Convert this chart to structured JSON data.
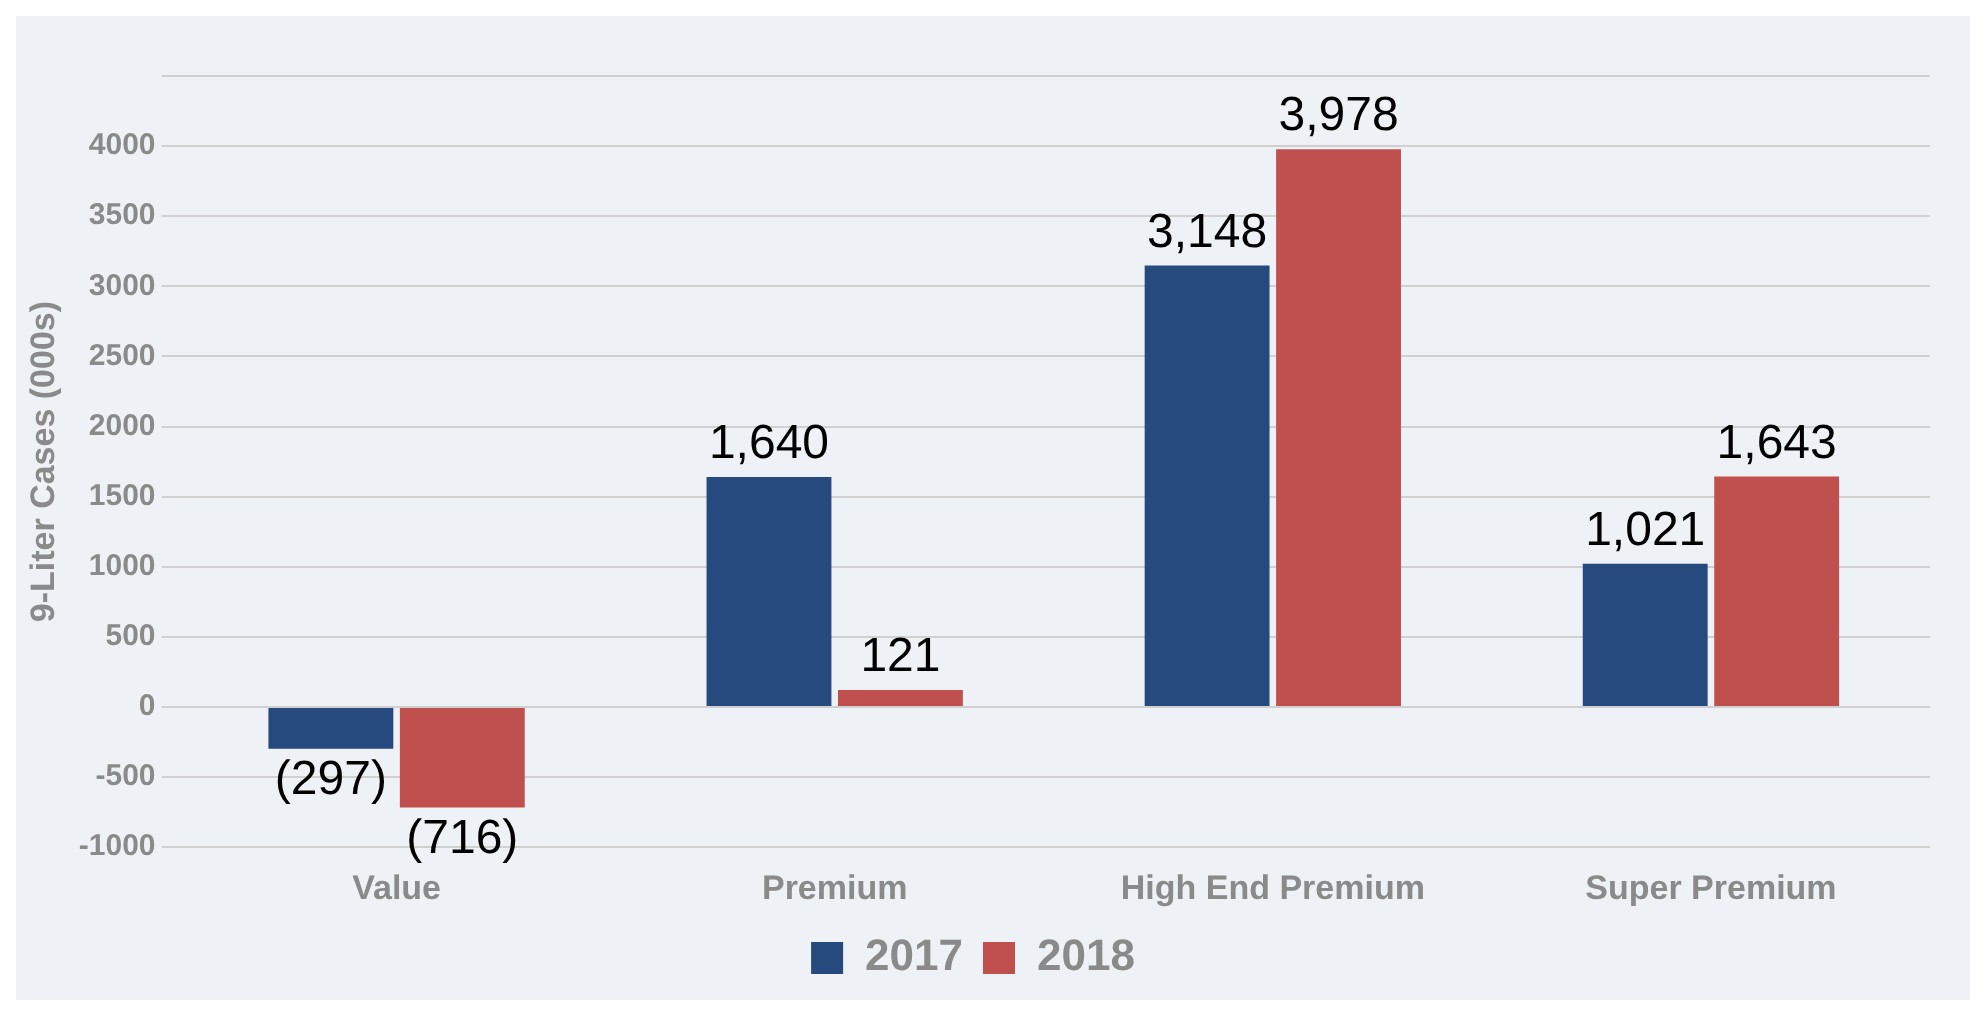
{
  "chart_data": {
    "type": "bar",
    "ylabel": "9-Liter Cases (000s)",
    "categories": [
      "Value",
      "Premium",
      "High End Premium",
      "Super Premium"
    ],
    "series": [
      {
        "name": "2017",
        "color": "#264a7e",
        "values": [
          -297,
          1640,
          3148,
          1021
        ],
        "value_labels": [
          "(297)",
          "1,640",
          "3,148",
          "1,021"
        ]
      },
      {
        "name": "2018",
        "color": "#c0504d",
        "values": [
          -716,
          121,
          3978,
          1643
        ],
        "value_labels": [
          "(716)",
          "121",
          "3,978",
          "1,643"
        ]
      }
    ],
    "ylim": [
      -1000,
      4500
    ],
    "yticks": [
      -1000,
      -500,
      0,
      500,
      1000,
      1500,
      2000,
      2500,
      3000,
      3500,
      4000,
      {
        "value": 4500,
        "label": null
      }
    ],
    "grid": "y",
    "legend": "bottom"
  }
}
